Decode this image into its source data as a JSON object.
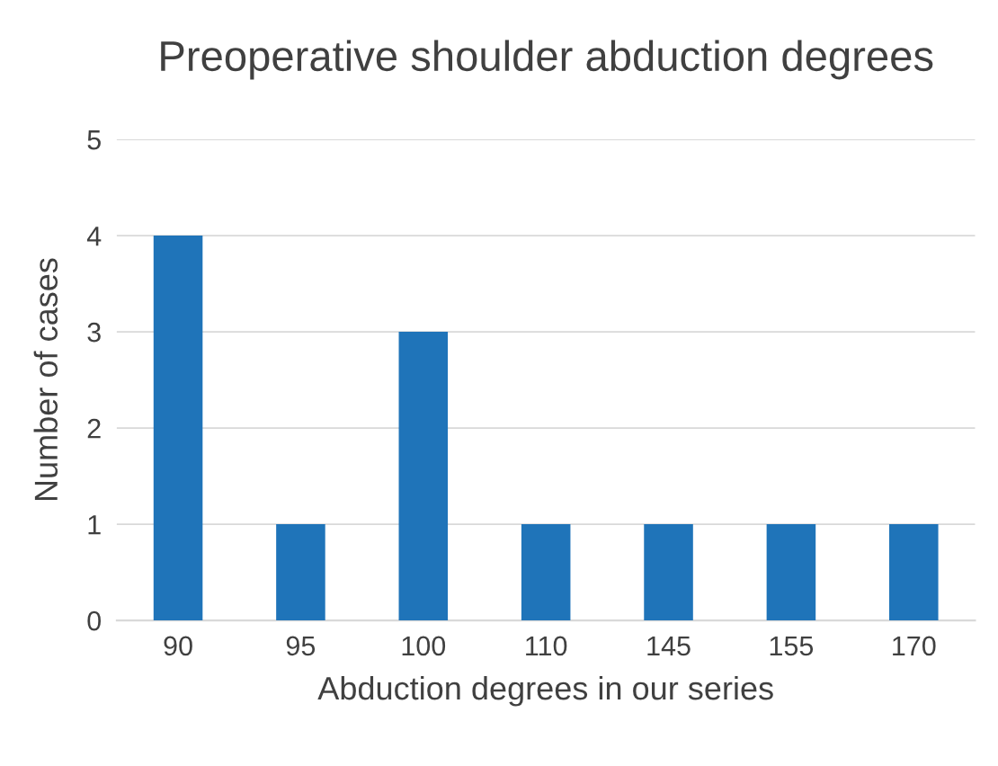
{
  "chart_data": {
    "type": "bar",
    "title": "Preoperative shoulder abduction degrees",
    "xlabel": "Abduction degrees in our series",
    "ylabel": "Number of cases",
    "categories": [
      "90",
      "95",
      "100",
      "110",
      "145",
      "155",
      "170"
    ],
    "values": [
      4,
      1,
      3,
      1,
      1,
      1,
      1
    ],
    "color": "#1f74b9",
    "ylim": [
      0,
      5
    ],
    "yticks": [
      0,
      1,
      2,
      3,
      4,
      5
    ],
    "grid": "y",
    "legend": false
  }
}
